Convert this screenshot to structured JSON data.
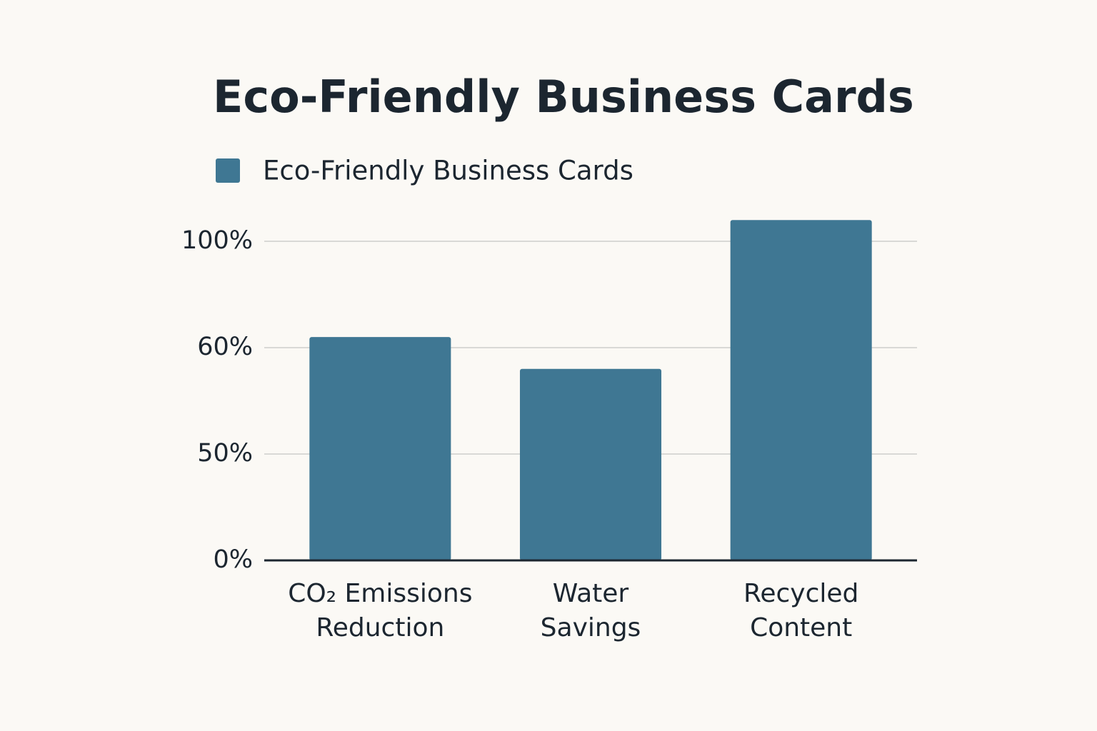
{
  "chart_data": {
    "type": "bar",
    "title": "Eco-Friendly Business Cards",
    "categories": [
      "CO₂ Emissions\nReduction",
      "Water\nSavings",
      "Recycled\nContent"
    ],
    "series": [
      {
        "name": "Eco-Friendly Business Cards",
        "color": "#3f7793",
        "values": [
          64,
          58,
          108
        ]
      }
    ],
    "ylim": [
      0,
      110
    ],
    "yticks": [
      {
        "value": 0,
        "label": "0%"
      },
      {
        "value": 50,
        "label": "50%"
      },
      {
        "value": 60,
        "label": "60%"
      },
      {
        "value": 100,
        "label": "100%"
      }
    ],
    "grid": true
  }
}
